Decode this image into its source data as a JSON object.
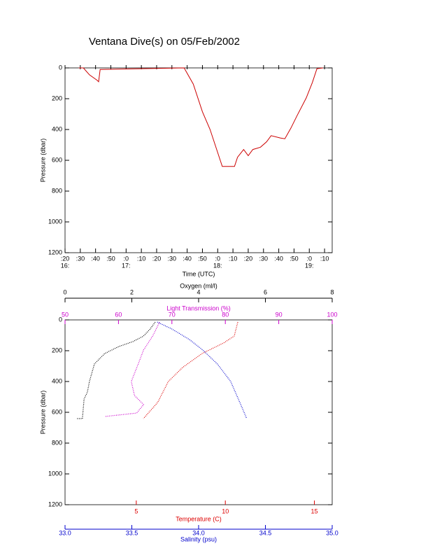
{
  "chart_data": [
    {
      "type": "line",
      "title": "Ventana Dive(s) on 05/Feb/2002",
      "xlabel": "Time (UTC)",
      "ylabel": "Pressure (dbar)",
      "color": "#cc0000",
      "invert_y": true,
      "x": [
        989,
        992,
        996,
        1001,
        1002,
        1003,
        1058,
        1064,
        1070,
        1075,
        1080,
        1083,
        1091,
        1093,
        1097,
        1100,
        1103,
        1108,
        1112,
        1115,
        1121,
        1124,
        1128,
        1132,
        1138,
        1142,
        1145,
        1149
      ],
      "values": [
        0,
        0,
        45,
        80,
        90,
        10,
        0,
        105,
        285,
        400,
        550,
        640,
        640,
        580,
        530,
        570,
        530,
        515,
        480,
        440,
        455,
        460,
        390,
        310,
        195,
        95,
        5,
        0
      ],
      "xlim": [
        980,
        1155
      ],
      "ylim": [
        0,
        1200
      ],
      "yticks": [
        0,
        200,
        400,
        600,
        800,
        1000,
        1200
      ],
      "xticks": [
        {
          "value": 980,
          "label": ":20"
        },
        {
          "value": 990,
          "label": ":30"
        },
        {
          "value": 1000,
          "label": ":40"
        },
        {
          "value": 1010,
          "label": ":50"
        },
        {
          "value": 1020,
          "label": ":0"
        },
        {
          "value": 1030,
          "label": ":10"
        },
        {
          "value": 1040,
          "label": ":20"
        },
        {
          "value": 1050,
          "label": ":30"
        },
        {
          "value": 1060,
          "label": ":40"
        },
        {
          "value": 1070,
          "label": ":50"
        },
        {
          "value": 1080,
          "label": ":0"
        },
        {
          "value": 1090,
          "label": ":10"
        },
        {
          "value": 1100,
          "label": ":20"
        },
        {
          "value": 1110,
          "label": ":30"
        },
        {
          "value": 1120,
          "label": ":40"
        },
        {
          "value": 1130,
          "label": ":50"
        },
        {
          "value": 1140,
          "label": ":0"
        },
        {
          "value": 1150,
          "label": ":10"
        }
      ],
      "xticks_hours": [
        {
          "value": 980,
          "label": "16:"
        },
        {
          "value": 1020,
          "label": "17:"
        },
        {
          "value": 1080,
          "label": "18:"
        },
        {
          "value": 1140,
          "label": "19:"
        }
      ]
    },
    {
      "type": "profile",
      "ylabel": "Pressure (dbar)",
      "invert_y": true,
      "ylim": [
        0,
        1200
      ],
      "yticks": [
        0,
        200,
        400,
        600,
        800,
        1000,
        1200
      ],
      "x_axes": [
        {
          "label": "Oxygen (ml/l)",
          "color": "#000000",
          "position": "top",
          "xlim": [
            0,
            8
          ],
          "xticks": [
            0,
            2,
            4,
            6,
            8
          ]
        },
        {
          "label": "Light Transmission (%)",
          "color": "#cc00cc",
          "position": "top",
          "xlim": [
            50,
            100
          ],
          "xticks": [
            50,
            60,
            70,
            80,
            90,
            100
          ]
        },
        {
          "label": "Temperature (C)",
          "color": "#dd0000",
          "position": "bottom",
          "xlim": [
            1,
            16
          ],
          "xticks": [
            5,
            10,
            15
          ]
        },
        {
          "label": "Salinity (psu)",
          "color": "#0000cc",
          "position": "bottom",
          "xlim": [
            33,
            35
          ],
          "xticks": [
            {
              "value": 33,
              "label": "33.0"
            },
            {
              "value": 33.5,
              "label": "33.5"
            },
            {
              "value": 34,
              "label": "34.0"
            },
            {
              "value": 34.5,
              "label": "34.5"
            },
            {
              "value": 35,
              "label": "35.0"
            }
          ]
        }
      ],
      "series": [
        {
          "x_axis": 0,
          "color": "#000000",
          "x": [
            2.7,
            2.55,
            2.35,
            2.03,
            1.61,
            1.19,
            0.88,
            0.73,
            0.67,
            0.57,
            0.52,
            0.36
          ],
          "y": [
            14,
            59,
            105,
            141,
            173,
            218,
            286,
            400,
            468,
            514,
            641,
            641
          ]
        },
        {
          "x_axis": 1,
          "color": "#cc00cc",
          "x": [
            67.7,
            66.4,
            64.7,
            63.7,
            62.4,
            63.0,
            64.7,
            63.4,
            57.5
          ],
          "y": [
            14,
            105,
            195,
            286,
            400,
            491,
            550,
            605,
            627
          ]
        },
        {
          "x_axis": 2,
          "color": "#dd0000",
          "x": [
            10.7,
            10.5,
            9.9,
            8.7,
            7.6,
            6.8,
            6.2,
            5.4
          ],
          "y": [
            14,
            105,
            150,
            218,
            309,
            400,
            536,
            641
          ]
        },
        {
          "x_axis": 3,
          "color": "#0000cc",
          "x": [
            33.69,
            33.8,
            33.93,
            34.03,
            34.14,
            34.24,
            34.32,
            34.36
          ],
          "y": [
            14,
            59,
            127,
            195,
            286,
            400,
            559,
            641
          ]
        }
      ]
    }
  ]
}
